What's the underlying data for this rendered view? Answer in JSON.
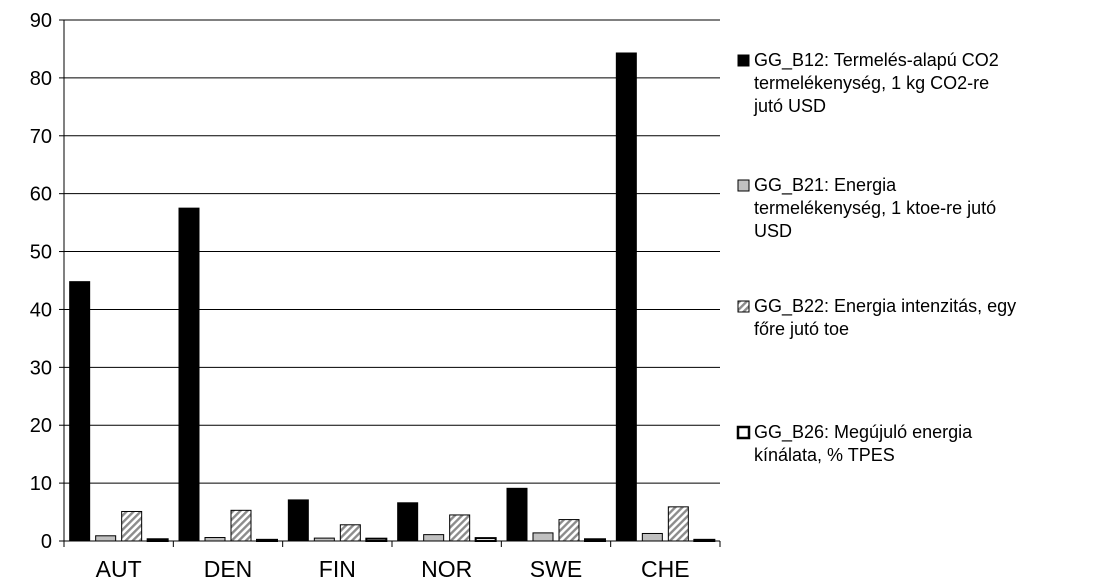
{
  "chart_data": {
    "type": "bar",
    "categories": [
      "AUT",
      "DEN",
      "FIN",
      "NOR",
      "SWE",
      "CHE"
    ],
    "ylim": [
      0,
      90
    ],
    "yticks": [
      0,
      10,
      20,
      30,
      40,
      50,
      60,
      70,
      80,
      90
    ],
    "grid": true,
    "legend_position": "right",
    "series": [
      {
        "name": "GG_B12: Termelés-alapú CO2 termelékenység, 1 kg CO2-re jutó USD",
        "legend_lines": [
          "GG_B12: Termelés-alapú CO2",
          "termelékenység, 1 kg CO2-re",
          "jutó USD"
        ],
        "pattern": "solid-black",
        "values": [
          44.8,
          57.5,
          7.1,
          6.6,
          9.1,
          84.3
        ]
      },
      {
        "name": "GG_B21: Energia termelékenység, 1 ktoe-re jutó USD",
        "legend_lines": [
          "GG_B21: Energia",
          "termelékenység, 1 ktoe-re jutó",
          "USD"
        ],
        "pattern": "light-gray",
        "values": [
          0.9,
          0.6,
          0.5,
          1.1,
          1.4,
          1.3
        ]
      },
      {
        "name": "GG_B22: Energia intenzitás, egy főre jutó toe",
        "legend_lines": [
          "GG_B22: Energia intenzitás, egy",
          "főre jutó toe"
        ],
        "pattern": "diagonal-hatch",
        "values": [
          5.1,
          5.3,
          2.8,
          4.5,
          3.7,
          5.9
        ]
      },
      {
        "name": "GG_B26: Megújuló energia kínálata, % TPES",
        "legend_lines": [
          "GG_B26: Megújuló energia",
          "kínálata, % TPES"
        ],
        "pattern": "black-outline",
        "values": [
          0.3,
          0.2,
          0.4,
          0.5,
          0.3,
          0.2
        ]
      }
    ]
  }
}
